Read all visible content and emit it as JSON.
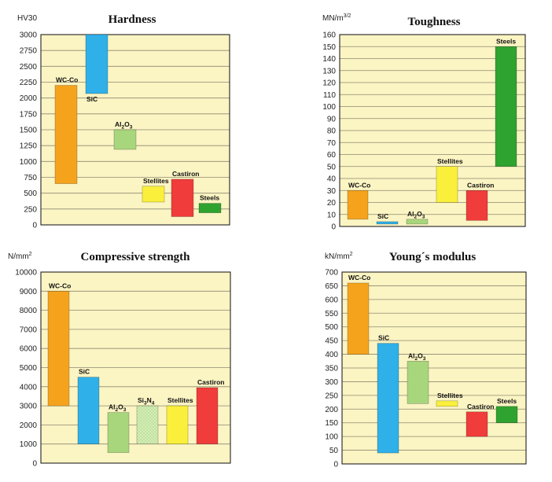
{
  "colors": {
    "plot_bg": "#fbf4c3",
    "grid": "#8c8a72",
    "frame": "#222222",
    "orange": "#f5a31d",
    "blue": "#2fb0e8",
    "lightgreen": "#a8d67d",
    "lightgreen_pattern": "#c8e7a6",
    "yellow": "#faf03c",
    "red": "#f03c3a",
    "green": "#2fa32f"
  },
  "chart_data": [
    {
      "type": "bar",
      "subtype": "floating-range",
      "title": "Hardness",
      "ylabel": "HV30",
      "ylim": [
        0,
        3000
      ],
      "yticks": [
        "0",
        "250",
        "500",
        "750",
        "1000",
        "1250",
        "1500",
        "1750",
        "2000",
        "2250",
        "2500",
        "2750",
        "3000"
      ],
      "grid": true,
      "bars": [
        {
          "label": "WC-Co",
          "low": 650,
          "high": 2200,
          "color": "orange",
          "label_pos": "above"
        },
        {
          "label": "SiC",
          "low": 2070,
          "high": 3000,
          "color": "blue",
          "label_pos": "below"
        },
        {
          "label": "Al2O3",
          "low": 1190,
          "high": 1500,
          "color": "lightgreen",
          "label_pos": "above"
        },
        {
          "label": "Stellites",
          "low": 360,
          "high": 610,
          "color": "yellow",
          "label_pos": "above"
        },
        {
          "label": "Cast iron",
          "low": 130,
          "high": 720,
          "color": "red",
          "label_pos": "above"
        },
        {
          "label": "Steels",
          "low": 190,
          "high": 340,
          "color": "green",
          "label_pos": "above"
        }
      ]
    },
    {
      "type": "bar",
      "subtype": "floating-range",
      "title": "Toughness",
      "ylabel": "MN/m3/2",
      "ylim": [
        0,
        160
      ],
      "yticks": [
        "0",
        "10",
        "20",
        "30",
        "40",
        "50",
        "60",
        "70",
        "80",
        "90",
        "100",
        "110",
        "120",
        "130",
        "140",
        "150",
        "160"
      ],
      "grid": true,
      "bars": [
        {
          "label": "WC-Co",
          "low": 6,
          "high": 30,
          "color": "orange",
          "label_pos": "above"
        },
        {
          "label": "SiC",
          "low": 2,
          "high": 4,
          "color": "blue",
          "label_pos": "above"
        },
        {
          "label": "Al2O3",
          "low": 2,
          "high": 6,
          "color": "lightgreen",
          "label_pos": "above"
        },
        {
          "label": "Stellites",
          "low": 20,
          "high": 50,
          "color": "yellow",
          "label_pos": "above"
        },
        {
          "label": "Cast iron",
          "low": 5,
          "high": 30,
          "color": "red",
          "label_pos": "above"
        },
        {
          "label": "Steels",
          "low": 50,
          "high": 150,
          "color": "green",
          "label_pos": "above"
        }
      ]
    },
    {
      "type": "bar",
      "subtype": "floating-range",
      "title": "Compressive strength",
      "ylabel": "N/mm2",
      "ylim": [
        0,
        10000
      ],
      "yticks": [
        "0",
        "1000",
        "2000",
        "3000",
        "4000",
        "5000",
        "6000",
        "7000",
        "8000",
        "9000",
        "10000"
      ],
      "grid": true,
      "bars": [
        {
          "label": "WC-Co",
          "low": 3000,
          "high": 9000,
          "color": "orange",
          "label_pos": "above"
        },
        {
          "label": "SiC",
          "low": 1000,
          "high": 4500,
          "color": "blue",
          "label_pos": "above"
        },
        {
          "label": "Al2O3",
          "low": 550,
          "high": 2650,
          "color": "lightgreen",
          "label_pos": "above"
        },
        {
          "label": "Si3N4",
          "low": 1000,
          "high": 3000,
          "color": "lightgreen_pattern",
          "label_pos": "above"
        },
        {
          "label": "Stellites",
          "low": 1000,
          "high": 3000,
          "color": "yellow",
          "label_pos": "above"
        },
        {
          "label": "Cast iron",
          "low": 1000,
          "high": 3950,
          "color": "red",
          "label_pos": "above"
        }
      ]
    },
    {
      "type": "bar",
      "subtype": "floating-range",
      "title": "Young´s modulus",
      "ylabel": "kN/mm2",
      "ylim": [
        0,
        700
      ],
      "yticks": [
        "0",
        "50",
        "100",
        "150",
        "200",
        "250",
        "300",
        "350",
        "400",
        "450",
        "500",
        "550",
        "600",
        "650",
        "700"
      ],
      "grid": true,
      "bars": [
        {
          "label": "WC-Co",
          "low": 400,
          "high": 660,
          "color": "orange",
          "label_pos": "above"
        },
        {
          "label": "SiC",
          "low": 40,
          "high": 440,
          "color": "blue",
          "label_pos": "above"
        },
        {
          "label": "Al2O3",
          "low": 220,
          "high": 375,
          "color": "lightgreen",
          "label_pos": "above"
        },
        {
          "label": "Stellites",
          "low": 210,
          "high": 230,
          "color": "yellow",
          "label_pos": "above"
        },
        {
          "label": "Cast iron",
          "low": 100,
          "high": 190,
          "color": "red",
          "label_pos": "above"
        },
        {
          "label": "Steels",
          "low": 150,
          "high": 210,
          "color": "green",
          "label_pos": "above"
        }
      ]
    }
  ]
}
